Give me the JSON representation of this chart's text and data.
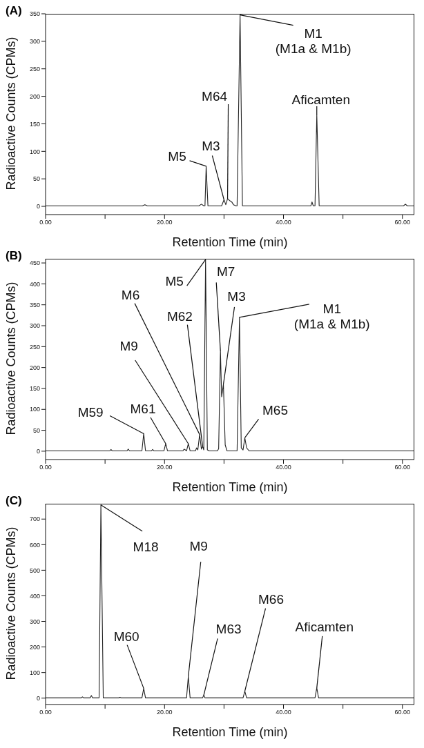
{
  "chart_data": [
    {
      "type": "line",
      "title": "(A)",
      "xlabel": "Retention Time (min)",
      "ylabel": "Radioactive Counts (CPMs)",
      "marker": "none",
      "x": [
        0,
        16.3,
        16.7,
        17.1,
        25.8,
        26.2,
        26.6,
        26.8,
        27.0,
        27.3,
        27.6,
        29.6,
        30.0,
        30.3,
        30.6,
        31.0,
        31.3,
        31.6,
        32.0,
        32.2,
        32.7,
        33.1,
        33.5,
        44.6,
        44.8,
        45.0,
        45.3,
        45.6,
        46.0,
        46.4,
        60.2,
        60.5,
        60.8,
        62
      ],
      "series": [
        {
          "color": "#222222",
          "values": [
            1,
            1,
            3,
            1,
            1,
            4,
            1,
            1,
            73,
            1,
            1,
            1,
            12,
            3,
            14,
            10,
            8,
            3,
            1,
            1,
            348,
            1,
            1,
            1,
            8,
            1,
            1,
            167,
            1,
            1,
            1,
            4,
            1,
            1
          ]
        }
      ],
      "xlim": [
        0,
        62
      ],
      "xticks": [
        {
          "value": 0,
          "label": "0.00"
        },
        {
          "value": 10,
          "label": null
        },
        {
          "value": 20,
          "label": "20.00"
        },
        {
          "value": 30,
          "label": null
        },
        {
          "value": 40,
          "label": "40.00"
        },
        {
          "value": 50,
          "label": null
        },
        {
          "value": 60,
          "label": "60.00"
        }
      ],
      "ylim": [
        -15,
        350
      ],
      "yticks": [
        0,
        50,
        100,
        150,
        200,
        250,
        300,
        350
      ],
      "annotations": [
        {
          "text": "M5",
          "x": 27.0,
          "y": 73
        },
        {
          "text": "M3",
          "x": 30.0,
          "y": 12
        },
        {
          "text": "M64",
          "x": 30.6,
          "y": 14
        },
        {
          "text": "M1\n(M1a & M1b)",
          "x": 32.7,
          "y": 348
        },
        {
          "text": "Aficamten",
          "x": 45.6,
          "y": 167
        }
      ]
    },
    {
      "type": "line",
      "title": "(B)",
      "xlabel": "Retention Time (min)",
      "ylabel": "Radioactive Counts (CPMs)",
      "marker": "none",
      "x": [
        0,
        10.8,
        11.0,
        11.2,
        13.7,
        13.9,
        14.1,
        16.2,
        16.5,
        16.8,
        17.8,
        18.0,
        18.2,
        19.9,
        20.2,
        20.5,
        23.1,
        23.3,
        23.5,
        23.7,
        24.0,
        24.3,
        25.2,
        25.4,
        25.6,
        25.9,
        26.2,
        26.4,
        26.6,
        26.9,
        27.2,
        27.5,
        28.9,
        29.1,
        29.4,
        29.6,
        29.9,
        30.2,
        30.5,
        32.2,
        32.6,
        32.9,
        33.2,
        33.5,
        33.8,
        34.2,
        62
      ],
      "series": [
        {
          "color": "#222222",
          "values": [
            1,
            1,
            4,
            1,
            1,
            5,
            1,
            1,
            42,
            1,
            1,
            4,
            1,
            1,
            18,
            1,
            1,
            5,
            3,
            1,
            18,
            1,
            1,
            8,
            3,
            40,
            5,
            12,
            3,
            458,
            3,
            1,
            1,
            6,
            240,
            130,
            160,
            15,
            1,
            1,
            320,
            8,
            3,
            32,
            8,
            1,
            1
          ]
        }
      ],
      "xlim": [
        0,
        62
      ],
      "xticks": [
        {
          "value": 0,
          "label": "0.00"
        },
        {
          "value": 10,
          "label": null
        },
        {
          "value": 20,
          "label": "20.00"
        },
        {
          "value": 30,
          "label": null
        },
        {
          "value": 40,
          "label": "40.00"
        },
        {
          "value": 50,
          "label": null
        },
        {
          "value": 60,
          "label": "60.00"
        }
      ],
      "ylim": [
        -20,
        460
      ],
      "yticks": [
        0,
        50,
        100,
        150,
        200,
        250,
        300,
        350,
        400,
        450
      ],
      "annotations": [
        {
          "text": "M59",
          "x": 16.5,
          "y": 42
        },
        {
          "text": "M61",
          "x": 20.2,
          "y": 18
        },
        {
          "text": "M9",
          "x": 24.0,
          "y": 18
        },
        {
          "text": "M6",
          "x": 25.9,
          "y": 40
        },
        {
          "text": "M62",
          "x": 26.4,
          "y": 12
        },
        {
          "text": "M5",
          "x": 26.9,
          "y": 458
        },
        {
          "text": "M7",
          "x": 29.4,
          "y": 240
        },
        {
          "text": "M3",
          "x": 29.9,
          "y": 160
        },
        {
          "text": "M1\n(M1a & M1b)",
          "x": 32.6,
          "y": 320
        },
        {
          "text": "M65",
          "x": 33.5,
          "y": 32
        }
      ]
    },
    {
      "type": "line",
      "title": "(C)",
      "xlabel": "Retention Time (min)",
      "ylabel": "Radioactive Counts (CPMs)",
      "marker": "none",
      "x": [
        0,
        6.0,
        6.2,
        6.4,
        7.5,
        7.7,
        7.9,
        9.0,
        9.3,
        9.7,
        12.3,
        12.5,
        12.7,
        16.2,
        16.5,
        16.8,
        23.7,
        24.0,
        24.3,
        26.4,
        26.6,
        26.8,
        33.2,
        33.5,
        33.8,
        45.3,
        45.6,
        45.9,
        62
      ],
      "series": [
        {
          "color": "#222222",
          "values": [
            1,
            1,
            5,
            1,
            1,
            10,
            1,
            1,
            755,
            1,
            1,
            3,
            1,
            1,
            38,
            1,
            1,
            85,
            1,
            1,
            12,
            1,
            1,
            27,
            1,
            1,
            40,
            1,
            1
          ]
        }
      ],
      "xlim": [
        0,
        62
      ],
      "xticks": [
        {
          "value": 0,
          "label": "0.00"
        },
        {
          "value": 10,
          "label": null
        },
        {
          "value": 20,
          "label": "20.00"
        },
        {
          "value": 30,
          "label": null
        },
        {
          "value": 40,
          "label": "40.00"
        },
        {
          "value": 50,
          "label": null
        },
        {
          "value": 60,
          "label": "60.00"
        }
      ],
      "ylim": [
        -25,
        760
      ],
      "yticks": [
        0,
        100,
        200,
        300,
        400,
        500,
        600,
        700
      ],
      "annotations": [
        {
          "text": "M18",
          "x": 9.3,
          "y": 755
        },
        {
          "text": "M60",
          "x": 16.5,
          "y": 38
        },
        {
          "text": "M9",
          "x": 24.0,
          "y": 85
        },
        {
          "text": "M63",
          "x": 26.6,
          "y": 12
        },
        {
          "text": "M66",
          "x": 33.5,
          "y": 27
        },
        {
          "text": "Aficamten",
          "x": 45.6,
          "y": 40
        }
      ]
    }
  ]
}
